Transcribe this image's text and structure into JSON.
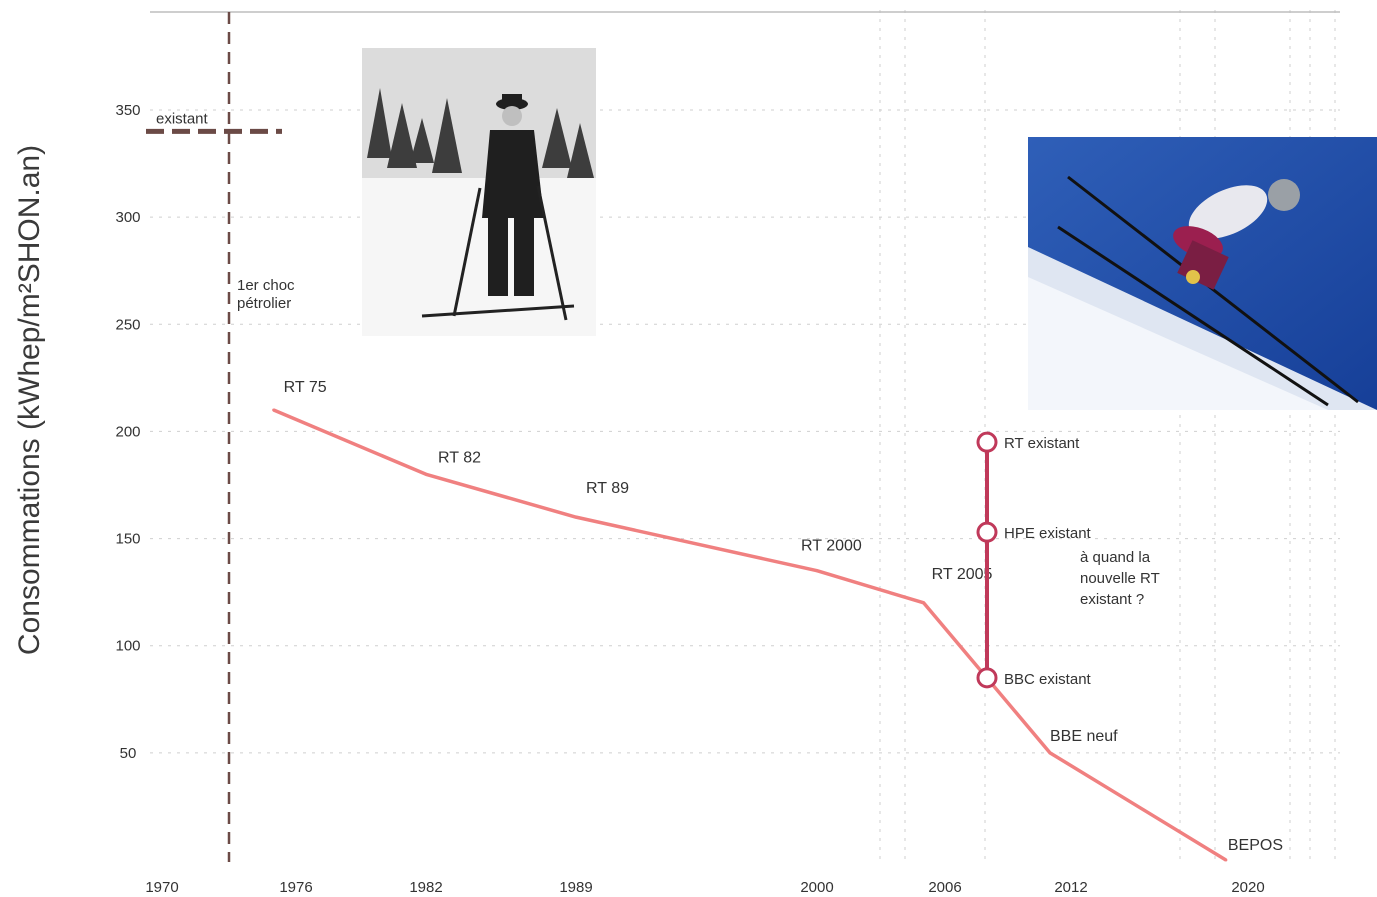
{
  "chart_data": {
    "type": "line",
    "ylabel": "Consommations (kWhep/m²SHON.an)",
    "y_ticks": [
      "350",
      "300",
      "250",
      "200",
      "150",
      "100",
      "50"
    ],
    "x_ticks": [
      "1970",
      "1976",
      "1982",
      "1989",
      "2000",
      "2006",
      "2012",
      "2020"
    ],
    "series": [
      {
        "values": [
          {
            "x": 1975,
            "y": 210,
            "label": "RT 75"
          },
          {
            "x": 1982,
            "y": 180,
            "label": "RT 82"
          },
          {
            "x": 1989,
            "y": 160,
            "label": "RT 89"
          },
          {
            "x": 2000,
            "y": 135,
            "label": "RT 2000"
          },
          {
            "x": 2005,
            "y": 120,
            "label": "RT 2005"
          },
          {
            "x": 2011,
            "y": 50,
            "label": "BBE neuf"
          },
          {
            "x": 2019,
            "y": 0,
            "label": "BEPOS"
          }
        ],
        "color": "#f08080"
      }
    ],
    "existing_range": {
      "x": 2008,
      "points": [
        {
          "y": 195,
          "label": "RT existant"
        },
        {
          "y": 153,
          "label": "HPE existant"
        },
        {
          "y": 85,
          "label": "BBC existant"
        }
      ],
      "color": "#c0395a"
    },
    "annotations": {
      "existant": "existant",
      "existant_level": 340,
      "choc": [
        "1er choc",
        "pétrolier"
      ],
      "choc_year": 1973,
      "question": [
        "à quand la",
        "nouvelle RT",
        "existant ?"
      ]
    },
    "colors": {
      "dashed": "#6b4a46",
      "axis_text": "#333333"
    }
  }
}
